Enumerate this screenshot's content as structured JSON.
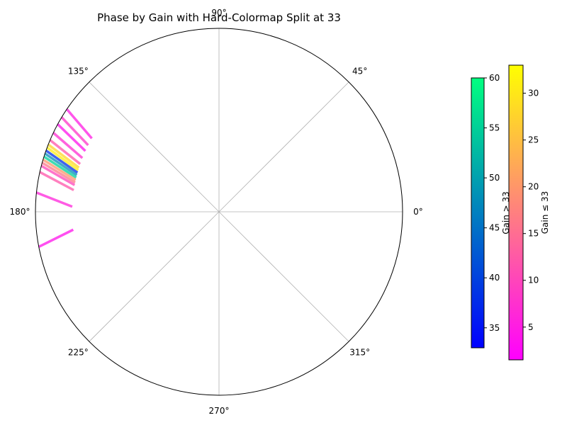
{
  "chart_data": {
    "type": "polar-segments",
    "title": "Phase by Gain with Hard-Colormap Split at 33",
    "angle_unit": "degrees",
    "angle_ticks": [
      "0°",
      "45°",
      "90°",
      "135°",
      "180°",
      "225°",
      "270°",
      "315°"
    ],
    "angle_tick_values": [
      0,
      45,
      90,
      135,
      180,
      225,
      270,
      315
    ],
    "radial_tick_labels_shown": false,
    "grid": true,
    "split_threshold": 33,
    "segment_radius_range": [
      0.8,
      1.0
    ],
    "series": [
      {
        "phase_deg": 146,
        "gain": 5
      },
      {
        "phase_deg": 149,
        "gain": 8
      },
      {
        "phase_deg": 151.5,
        "gain": 4
      },
      {
        "phase_deg": 154.5,
        "gain": 7
      },
      {
        "phase_deg": 157,
        "gain": 12
      },
      {
        "phase_deg": 158.5,
        "gain": 28
      },
      {
        "phase_deg": 159.5,
        "gain": 31
      },
      {
        "phase_deg": 160.5,
        "gain": 38
      },
      {
        "phase_deg": 161.5,
        "gain": 48
      },
      {
        "phase_deg": 162.5,
        "gain": 55
      },
      {
        "phase_deg": 163.5,
        "gain": 20
      },
      {
        "phase_deg": 164.5,
        "gain": 16
      },
      {
        "phase_deg": 165.5,
        "gain": 10
      },
      {
        "phase_deg": 167.5,
        "gain": 12
      },
      {
        "phase_deg": 174,
        "gain": 6
      },
      {
        "phase_deg": 191,
        "gain": 4
      }
    ],
    "colorbars": [
      {
        "label": "Gain > 33",
        "range": [
          33,
          60
        ],
        "ticks": [
          35,
          40,
          45,
          50,
          55,
          60
        ],
        "colormap": "winter",
        "stops": [
          "#0000ff",
          "#00ff80"
        ]
      },
      {
        "label": "Gain ≤ 33",
        "range": [
          1.5,
          33
        ],
        "ticks": [
          5,
          10,
          15,
          20,
          25,
          30
        ],
        "colormap": "spring",
        "stops": [
          "#ff00ff",
          "#ffff00"
        ]
      }
    ]
  }
}
